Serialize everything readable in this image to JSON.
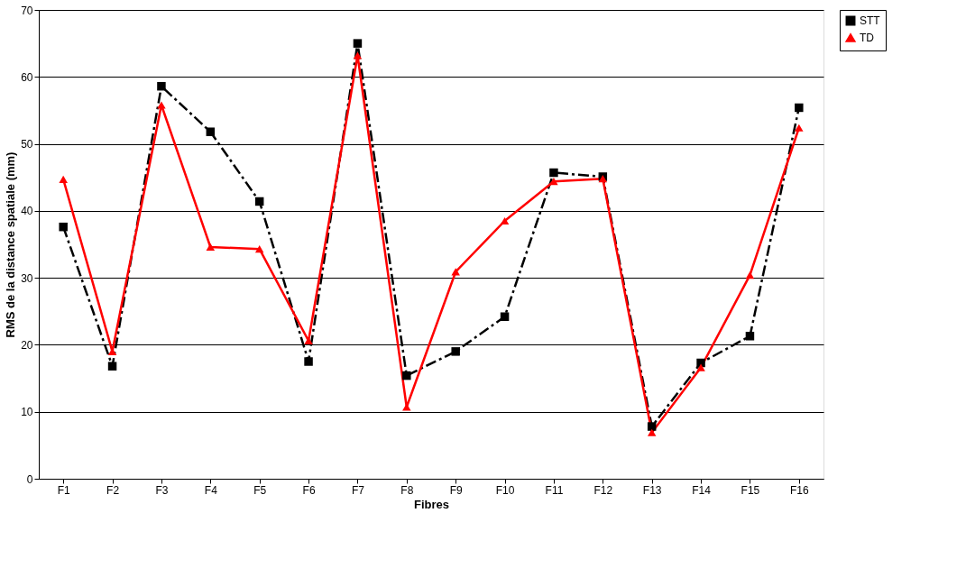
{
  "chart_data": {
    "type": "line",
    "xlabel": "Fibres",
    "ylabel": "RMS de la distance spatiale (mm)",
    "categories": [
      "F1",
      "F2",
      "F3",
      "F4",
      "F5",
      "F6",
      "F7",
      "F8",
      "F9",
      "F10",
      "F11",
      "F12",
      "F13",
      "F14",
      "F15",
      "F16"
    ],
    "series": [
      {
        "name": "STT",
        "color": "#000000",
        "marker": "square",
        "line_style": "dashed",
        "values": [
          37.6,
          16.8,
          58.6,
          51.8,
          41.4,
          17.5,
          65.0,
          15.4,
          19.0,
          24.2,
          45.7,
          45.1,
          7.8,
          17.3,
          21.3,
          55.4
        ]
      },
      {
        "name": "TD",
        "color": "#ff0000",
        "marker": "triangle",
        "line_style": "solid",
        "values": [
          44.7,
          19.0,
          55.8,
          34.6,
          34.3,
          20.6,
          63.2,
          10.7,
          30.9,
          38.5,
          44.4,
          44.8,
          6.9,
          16.6,
          30.4,
          52.4
        ]
      }
    ],
    "ylim": [
      0,
      70
    ],
    "yticks": [
      0,
      10,
      20,
      30,
      40,
      50,
      60,
      70
    ],
    "grid": "y",
    "legend": "right"
  }
}
